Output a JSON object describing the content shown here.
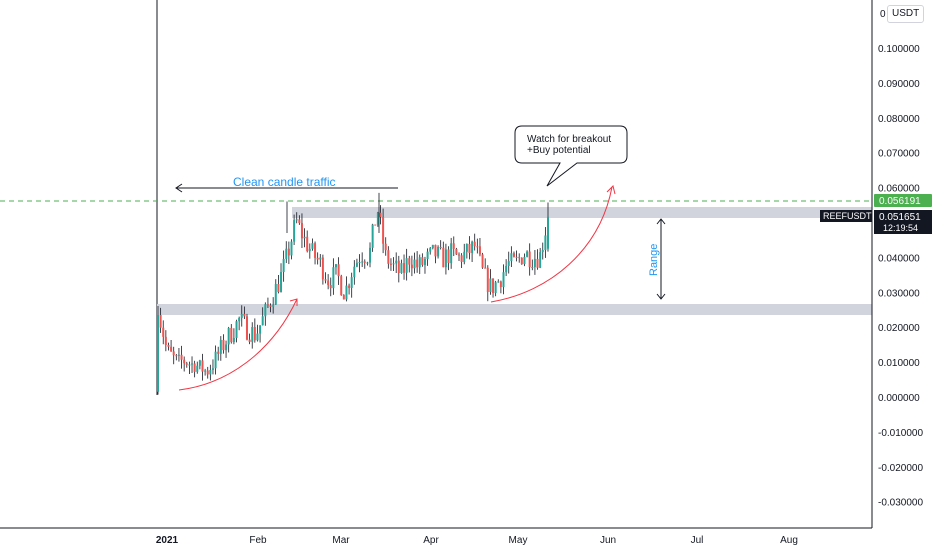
{
  "currency_badge": "USDT",
  "colors": {
    "up": "#26a69a",
    "down": "#ef5350",
    "wick": "#131722",
    "zone": "#d1d4dc",
    "curve": "#f23645",
    "annotation_blue": "#2196f3",
    "level_green": "#4caf50",
    "axis_border": "#131722"
  },
  "price_axis": {
    "ticks": [
      "0.100000",
      "0.090000",
      "0.080000",
      "0.070000",
      "0.060000",
      "0.040000",
      "0.030000",
      "0.020000",
      "0.010000",
      "0.000000",
      "-0.010000",
      "-0.020000",
      "-0.030000"
    ],
    "top_partial": "0"
  },
  "time_axis": {
    "ticks": [
      "2021",
      "Feb",
      "Mar",
      "Apr",
      "May",
      "Jun",
      "Jul",
      "Aug"
    ]
  },
  "labels": {
    "symbol": "REEFUSDT",
    "last_price": "0.051651",
    "countdown": "12:19:54",
    "level_price": "0.056191"
  },
  "annotations": {
    "traffic": "Clean candle traffic",
    "range": "Range",
    "callout_line1": "Watch for breakout",
    "callout_line2": "+Buy potential"
  },
  "chart_data": {
    "type": "candlestick",
    "symbol": "REEFUSDT",
    "currency": "USDT",
    "y_range": [
      -0.035,
      0.105
    ],
    "levels": {
      "resistance_dashed": 0.056191,
      "last_price": 0.051651,
      "supply_zone": [
        0.051,
        0.0535
      ],
      "demand_zone": [
        0.0235,
        0.0265
      ]
    },
    "price_ticks": [
      0.1,
      0.09,
      0.08,
      0.07,
      0.06,
      0.04,
      0.03,
      0.02,
      0.01,
      0.0,
      -0.01,
      -0.02,
      -0.03
    ],
    "time_ticks": [
      "2021",
      "Feb",
      "Mar",
      "Apr",
      "May",
      "Jun",
      "Jul",
      "Aug"
    ],
    "approx_closes": [
      0.0233,
      0.0145,
      0.0112,
      0.0103,
      0.0095,
      0.0088,
      0.0072,
      0.0105,
      0.0148,
      0.0184,
      0.0221,
      0.0195,
      0.0178,
      0.0228,
      0.0285,
      0.0335,
      0.0412,
      0.0505,
      0.0452,
      0.0412,
      0.0382,
      0.0335,
      0.0352,
      0.0298,
      0.0372,
      0.0412,
      0.0405,
      0.0542,
      0.0402,
      0.0372,
      0.0352,
      0.0402,
      0.0372,
      0.0392,
      0.0412,
      0.0395,
      0.0412,
      0.0398,
      0.0412,
      0.0432,
      0.0352,
      0.0312,
      0.0335,
      0.0382,
      0.0382,
      0.0412,
      0.0402,
      0.0402,
      0.0516
    ]
  }
}
